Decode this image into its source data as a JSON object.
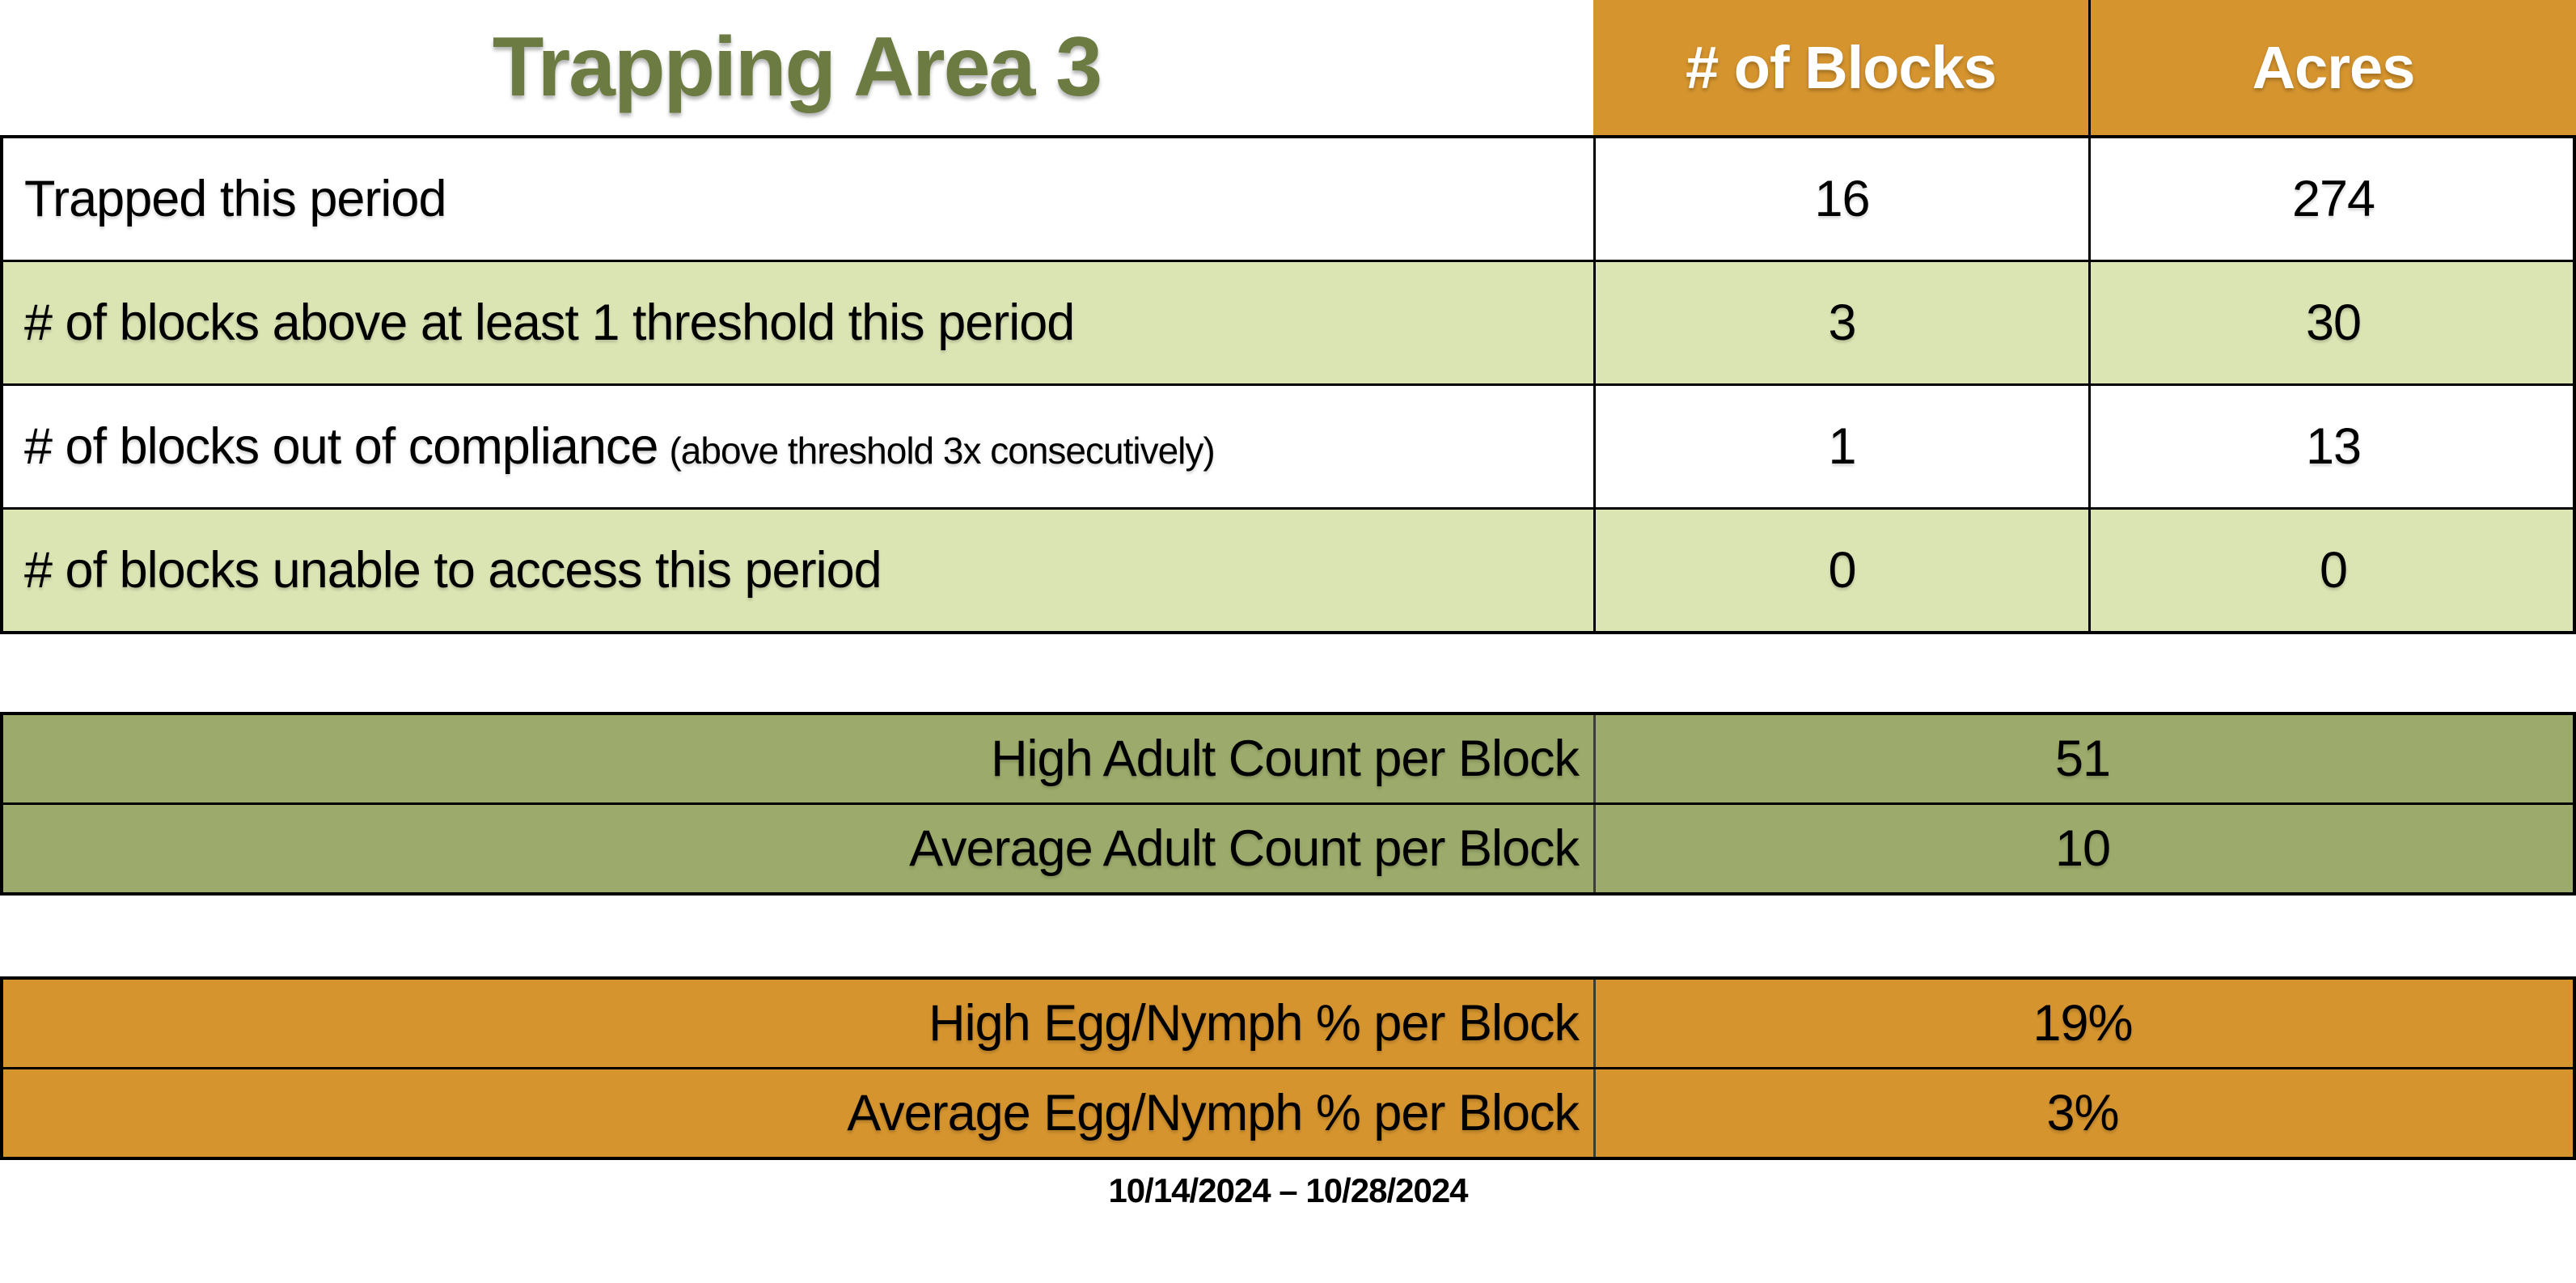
{
  "title": "Trapping Area 3",
  "colors": {
    "title_green": "#6B7B42",
    "header_orange": "#D5942E",
    "light_green_row": "#DBE5B4",
    "olive_table": "#9CAB6B",
    "orange_table": "#D5942E",
    "border": "#000000",
    "header_text": "#FFFFFF",
    "body_text": "#000000"
  },
  "main_table": {
    "columns": [
      "# of Blocks",
      "Acres"
    ],
    "rows": [
      {
        "label": "Trapped this period",
        "note": "",
        "blocks": "16",
        "acres": "274"
      },
      {
        "label": "# of blocks above at least 1 threshold this period",
        "note": "",
        "blocks": "3",
        "acres": "30"
      },
      {
        "label": "# of blocks out of compliance",
        "note": "(above threshold 3x consecutively)",
        "blocks": "1",
        "acres": "13"
      },
      {
        "label": "# of blocks unable to access this period",
        "note": "",
        "blocks": "0",
        "acres": "0"
      }
    ]
  },
  "adult_table": {
    "rows": [
      {
        "label": "High Adult Count per Block",
        "value": "51"
      },
      {
        "label": "Average Adult Count per Block",
        "value": "10"
      }
    ]
  },
  "egg_table": {
    "rows": [
      {
        "label": "High Egg/Nymph % per Block",
        "value": "19%"
      },
      {
        "label": "Average Egg/Nymph % per Block",
        "value": "3%"
      }
    ]
  },
  "date_range": "10/14/2024 – 10/28/2024"
}
